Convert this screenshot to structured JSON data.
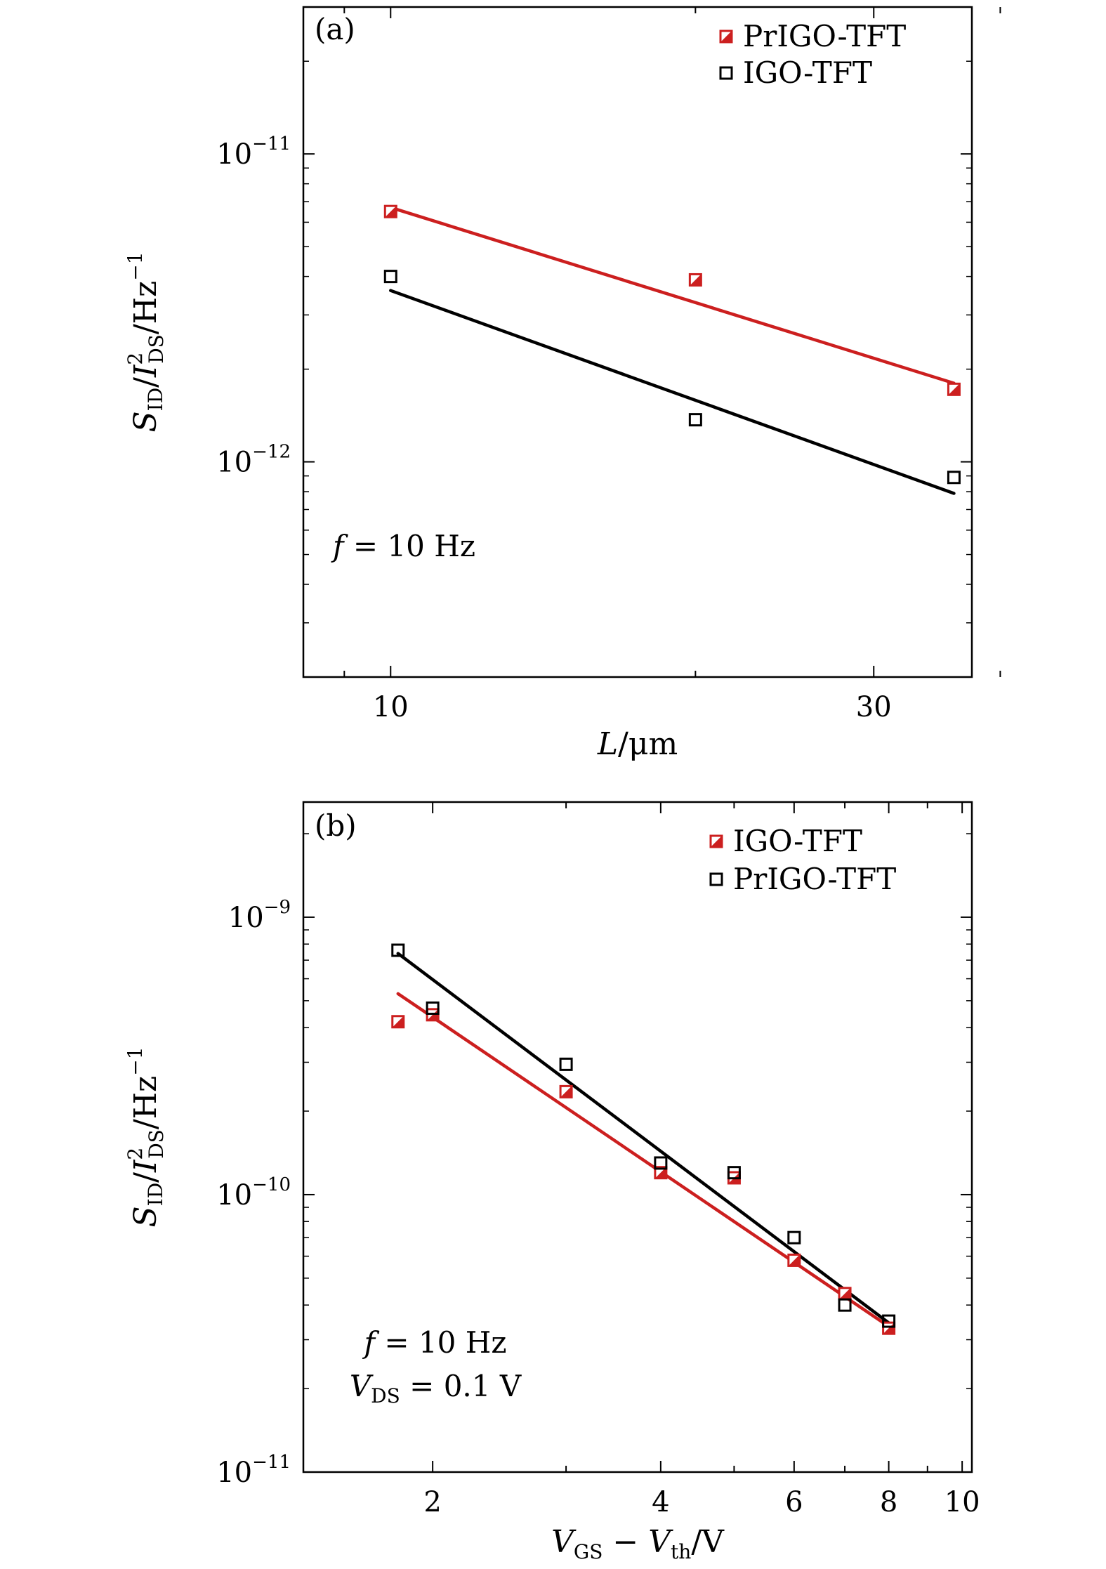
{
  "chart_data": [
    {
      "panel_label": "(a)",
      "type": "scatter",
      "xscale": "log",
      "yscale": "log",
      "xlim": [
        8.2,
        37.5
      ],
      "ylim": [
        2e-13,
        3e-11
      ],
      "x_ticks": [
        {
          "value": 10,
          "label": "10"
        },
        {
          "value": 30,
          "label": "30"
        }
      ],
      "x_minor_ticks": [
        9,
        20,
        40
      ],
      "y_ticks": [
        {
          "value": 1e-11,
          "base": "10",
          "exp": "−11"
        },
        {
          "value": 1e-12,
          "base": "10",
          "exp": "−12"
        }
      ],
      "xlabel": {
        "var": "L",
        "rest": "/μm"
      },
      "ylabel": {
        "s": "S",
        "s_sub": "ID",
        "slash1": "/",
        "i": "I",
        "i_sup": "2",
        "i_sub": "DS",
        "unit": "/Hz",
        "unit_sup": "−1"
      },
      "annotations": [
        {
          "var": "f",
          "text": " = 10 Hz"
        }
      ],
      "legend_position": "top-right",
      "series": [
        {
          "name": "PrIGO-TFT",
          "color": "#cc1f1f",
          "marker": "half-filled-square",
          "points": [
            [
              10,
              6.5e-12
            ],
            [
              20,
              3.9e-12
            ],
            [
              36,
              1.72e-12
            ]
          ],
          "fit": [
            [
              10,
              6.7e-12
            ],
            [
              36,
              1.8e-12
            ]
          ]
        },
        {
          "name": "IGO-TFT",
          "color": "#000000",
          "marker": "open-square",
          "points": [
            [
              10,
              4e-12
            ],
            [
              20,
              1.37e-12
            ],
            [
              36,
              8.9e-13
            ]
          ],
          "fit": [
            [
              10,
              3.6e-12
            ],
            [
              36,
              7.9e-13
            ]
          ]
        }
      ]
    },
    {
      "panel_label": "(b)",
      "type": "scatter",
      "xscale": "log",
      "yscale": "log",
      "xlim": [
        1.35,
        10.3
      ],
      "ylim": [
        1e-11,
        2.6e-09
      ],
      "x_ticks": [
        {
          "value": 2,
          "label": "2"
        },
        {
          "value": 4,
          "label": "4"
        },
        {
          "value": 6,
          "label": "6"
        },
        {
          "value": 8,
          "label": "8"
        },
        {
          "value": 10,
          "label": "10"
        }
      ],
      "x_minor_ticks": [
        3,
        5,
        7,
        9
      ],
      "y_ticks": [
        {
          "value": 1e-09,
          "base": "10",
          "exp": "−9"
        },
        {
          "value": 1e-10,
          "base": "10",
          "exp": "−10"
        },
        {
          "value": 1e-11,
          "base": "10",
          "exp": "−11"
        }
      ],
      "xlabel": {
        "v1": "V",
        "v1_sub": "GS",
        "minus": " − ",
        "v2": "V",
        "v2_sub": "th",
        "rest": "/V"
      },
      "ylabel": {
        "s": "S",
        "s_sub": "ID",
        "slash1": "/",
        "i": "I",
        "i_sup": "2",
        "i_sub": "DS",
        "unit": "/Hz",
        "unit_sup": "−1"
      },
      "annotations": [
        {
          "var": "f",
          "text": " = 10 Hz"
        },
        {
          "var": "V",
          "sub": "DS",
          "text": " = 0.1 V"
        }
      ],
      "legend_position": "top-right",
      "series": [
        {
          "name": "IGO-TFT",
          "color": "#cc1f1f",
          "marker": "half-filled-square",
          "points": [
            [
              1.8,
              4.2e-10
            ],
            [
              2,
              4.45e-10
            ],
            [
              3,
              2.35e-10
            ],
            [
              4,
              1.2e-10
            ],
            [
              5,
              1.15e-10
            ],
            [
              6,
              5.8e-11
            ],
            [
              7,
              4.4e-11
            ],
            [
              8,
              3.3e-11
            ]
          ],
          "fit": [
            [
              1.8,
              5.3e-10
            ],
            [
              8,
              3.35e-11
            ]
          ]
        },
        {
          "name": "PrIGO-TFT",
          "color": "#000000",
          "marker": "open-square",
          "points": [
            [
              1.8,
              7.6e-10
            ],
            [
              2,
              4.7e-10
            ],
            [
              3,
              2.95e-10
            ],
            [
              4,
              1.3e-10
            ],
            [
              5,
              1.2e-10
            ],
            [
              6,
              7e-11
            ],
            [
              7,
              4e-11
            ],
            [
              8,
              3.5e-11
            ]
          ],
          "fit": [
            [
              1.8,
              7.4e-10
            ],
            [
              8,
              3.45e-11
            ]
          ]
        }
      ]
    }
  ]
}
